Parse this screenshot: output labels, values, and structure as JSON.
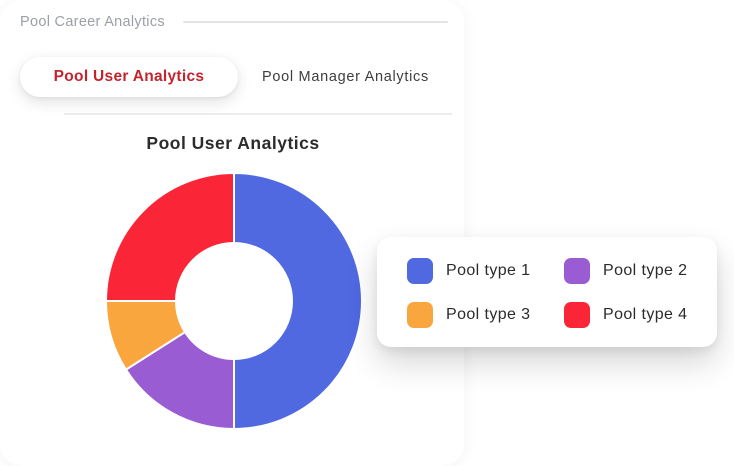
{
  "header": {
    "title": "Pool Career Analytics"
  },
  "tabs": [
    {
      "label": "Pool User Analytics",
      "active": true
    },
    {
      "label": "Pool Manager Analytics",
      "active": false
    }
  ],
  "chart_data": {
    "type": "pie",
    "subtype": "donut",
    "title": "Pool User Analytics",
    "categories": [
      "Pool type 1",
      "Pool type 2",
      "Pool type 3",
      "Pool type 4"
    ],
    "values": [
      50,
      16,
      9,
      25
    ],
    "unit": "percent",
    "colors": [
      "#5069e1",
      "#9a5cd3",
      "#faa63e",
      "#fa2638"
    ],
    "start_angle_deg": 0,
    "direction": "clockwise",
    "cutout_ratio": 0.45,
    "slice_border_color": "#ffffff",
    "legend_position": "floating-card-right"
  },
  "legend": {
    "items": [
      {
        "label": "Pool type 1",
        "color": "#5069e1"
      },
      {
        "label": "Pool type 2",
        "color": "#9a5cd3"
      },
      {
        "label": "Pool type 3",
        "color": "#faa63e"
      },
      {
        "label": "Pool type 4",
        "color": "#fa2638"
      }
    ]
  },
  "colors": {
    "card_bg": "#ffffff",
    "header_label": "#9ba0a7",
    "active_tab_text": "#c3252e",
    "inactive_tab_text": "#3e3e40",
    "chart_title_text": "#2c2c2e",
    "divider": "#ececee"
  }
}
